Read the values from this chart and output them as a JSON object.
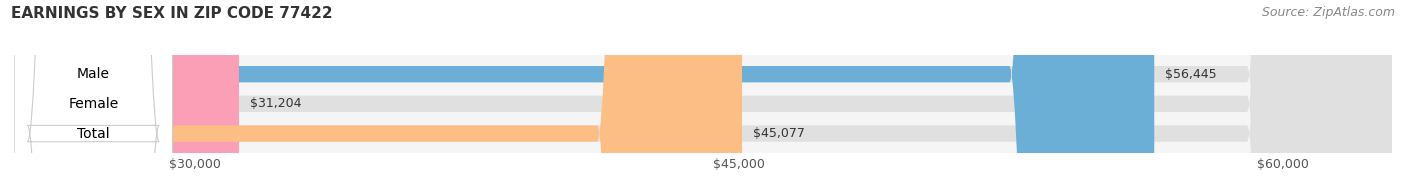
{
  "title": "EARNINGS BY SEX IN ZIP CODE 77422",
  "source": "Source: ZipAtlas.com",
  "categories": [
    "Male",
    "Female",
    "Total"
  ],
  "values": [
    56445,
    31204,
    45077
  ],
  "bar_colors": [
    "#6baed6",
    "#fa9fb5",
    "#fdbe85"
  ],
  "bar_bg_color": "#e0e0e0",
  "value_labels": [
    "$56,445",
    "$31,204",
    "$45,077"
  ],
  "xlim": [
    25000,
    63000
  ],
  "xticks": [
    30000,
    45000,
    60000
  ],
  "xtick_labels": [
    "$30,000",
    "$45,000",
    "$60,000"
  ],
  "bar_height": 0.55,
  "fig_bg_color": "#ffffff",
  "ax_bg_color": "#f5f5f5",
  "title_fontsize": 11,
  "source_fontsize": 9,
  "label_fontsize": 10,
  "value_fontsize": 9,
  "tick_fontsize": 9
}
